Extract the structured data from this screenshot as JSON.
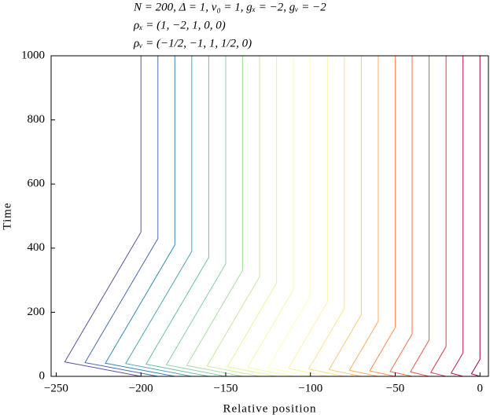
{
  "chart_data": {
    "type": "line",
    "title": [
      "N = 200, Δ = 1, v₀ = 1, gₓ = −2, gᵥ = −2",
      "ρₓ = (1, −2, 1, 0, 0)",
      "ρᵥ = (−1/2, −1, 1, 1/2, 0)"
    ],
    "x_label": "Relative position",
    "y_label": "Time",
    "xlim": [
      -253,
      5
    ],
    "ylim": [
      0,
      1000
    ],
    "xticks": [
      {
        "value": -250,
        "label": "−250"
      },
      {
        "value": -200,
        "label": "−200"
      },
      {
        "value": -150,
        "label": "−150"
      },
      {
        "value": -100,
        "label": "−100"
      },
      {
        "value": -50,
        "label": "−50"
      },
      0
    ],
    "yticks": [
      0,
      200,
      400,
      600,
      800,
      1000
    ],
    "series": [
      {
        "color": "#5e4fa2",
        "x": [
          -200,
          -245,
          -200,
          -200
        ],
        "values": [
          0,
          45,
          450,
          1000
        ]
      },
      {
        "color": "#486cb0",
        "x": [
          -190,
          -233,
          -190,
          -190
        ],
        "values": [
          0,
          43,
          430,
          1000
        ]
      },
      {
        "color": "#3288bd",
        "x": [
          -180,
          -221,
          -180,
          -180
        ],
        "values": [
          0,
          41,
          410,
          1000
        ]
      },
      {
        "color": "#4ca5b1",
        "x": [
          -170,
          -209,
          -170,
          -170
        ],
        "values": [
          0,
          40,
          390,
          1000
        ]
      },
      {
        "color": "#66c2a5",
        "x": [
          -160,
          -197,
          -160,
          -160
        ],
        "values": [
          0,
          38,
          371,
          1000
        ]
      },
      {
        "color": "#89d0a5",
        "x": [
          -150,
          -185,
          -150,
          -150
        ],
        "values": [
          0,
          36,
          351,
          1000
        ]
      },
      {
        "color": "#abdda4",
        "x": [
          -140,
          -173,
          -140,
          -140
        ],
        "values": [
          0,
          34,
          331,
          1000
        ]
      },
      {
        "color": "#c9e99e",
        "x": [
          -130,
          -161,
          -130,
          -130
        ],
        "values": [
          0,
          32,
          311,
          1000
        ]
      },
      {
        "color": "#e6f598",
        "x": [
          -120,
          -149,
          -120,
          -120
        ],
        "values": [
          0,
          30,
          291,
          1000
        ]
      },
      {
        "color": "#f3fab0",
        "x": [
          -110,
          -137,
          -110,
          -110
        ],
        "values": [
          0,
          28,
          271,
          1000
        ]
      },
      {
        "color": "#ffffbf",
        "x": [
          -100,
          -125,
          -100,
          -100
        ],
        "values": [
          0,
          27,
          252,
          1000
        ]
      },
      {
        "color": "#ffefa5",
        "x": [
          -90,
          -113,
          -90,
          -90
        ],
        "values": [
          0,
          25,
          232,
          1000
        ]
      },
      {
        "color": "#fee08b",
        "x": [
          -80,
          -101,
          -80,
          -80
        ],
        "values": [
          0,
          23,
          212,
          1000
        ]
      },
      {
        "color": "#fec776",
        "x": [
          -70,
          -89,
          -70,
          -70
        ],
        "values": [
          0,
          21,
          192,
          1000
        ]
      },
      {
        "color": "#fdae61",
        "x": [
          -60,
          -77,
          -60,
          -60
        ],
        "values": [
          0,
          19,
          172,
          1000
        ]
      },
      {
        "color": "#f98e52",
        "x": [
          -50,
          -65,
          -50,
          -50
        ],
        "values": [
          0,
          17,
          152,
          1000
        ]
      },
      {
        "color": "#f46d43",
        "x": [
          -40,
          -53,
          -40,
          -40
        ],
        "values": [
          0,
          15,
          132,
          1000
        ]
      },
      {
        "color": "#e55649",
        "x": [
          -30,
          -41,
          -30,
          -30
        ],
        "values": [
          0,
          14,
          113,
          1000
        ]
      },
      {
        "color": "#d53e4f",
        "x": [
          -20,
          -29,
          -20,
          -20
        ],
        "values": [
          0,
          12,
          93,
          1000
        ]
      },
      {
        "color": "#b92049",
        "x": [
          -10,
          -17,
          -10,
          -10
        ],
        "values": [
          0,
          10,
          73,
          1000
        ]
      },
      {
        "color": "#9e0142",
        "x": [
          0,
          -5,
          0,
          0
        ],
        "values": [
          0,
          8,
          53,
          1000
        ]
      }
    ]
  }
}
